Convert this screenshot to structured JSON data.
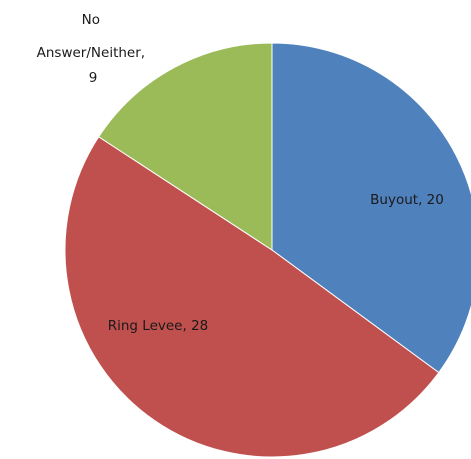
{
  "chart_data": {
    "type": "pie",
    "start_angle_deg": 0,
    "direction": "clockwise",
    "slices": [
      {
        "label_lines": [
          "Buyout, 20"
        ],
        "name": "Buyout",
        "value": 20,
        "color": "#4F81BD"
      },
      {
        "label_lines": [
          "Ring Levee, 28"
        ],
        "name": "Ring Levee",
        "value": 28,
        "color": "#C0504D"
      },
      {
        "label_lines": [
          "No",
          "Answer/Neither,",
          "9"
        ],
        "name": "No Answer/Neither",
        "value": 9,
        "color": "#9BBB59"
      }
    ]
  }
}
